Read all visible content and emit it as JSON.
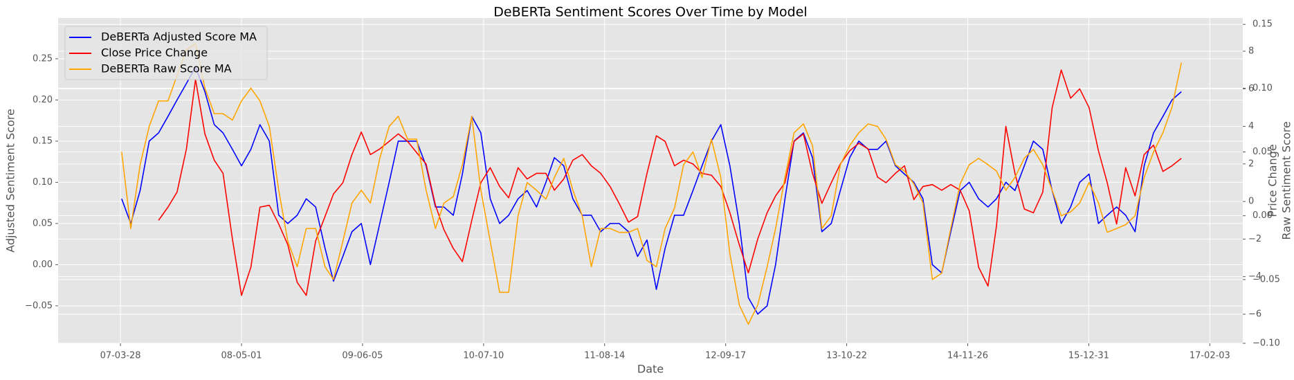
{
  "chart_data": {
    "type": "line",
    "title": "DeBERTa Sentiment Scores Over Time by Model",
    "xlabel": "Date",
    "ylabel": "Adjusted Sentiment Score",
    "y2label": "Price Change",
    "y3label": "Raw Sentiment Score",
    "grid": true,
    "legend": "upper left",
    "xlim": [
      "06-09-03",
      "17-05-23"
    ],
    "xticks": [
      "07-03-28",
      "08-05-01",
      "09-06-05",
      "10-07-10",
      "11-08-14",
      "12-09-17",
      "13-10-22",
      "14-11-26",
      "15-12-31",
      "17-02-03"
    ],
    "ylim": [
      -0.0955,
      0.2995
    ],
    "yticks": [
      {
        "value": -0.05,
        "label": "−0.05"
      },
      {
        "value": 0,
        "label": "0.00"
      },
      0.05,
      {
        "value": 0.1,
        "label": "0.10"
      },
      0.15,
      {
        "value": 0.2,
        "label": "0.20"
      },
      0.25
    ],
    "y2lim": [
      -7.55,
      9.77
    ],
    "y2ticks": [
      {
        "value": -6,
        "label": "−6"
      },
      {
        "value": -4,
        "label": "−4"
      },
      {
        "value": -2,
        "label": "−2"
      },
      0,
      2,
      4,
      6,
      8
    ],
    "y3lim": [
      -0.1,
      0.155
    ],
    "y3ticks": [
      {
        "value": -0.1,
        "label": "−0.10"
      },
      {
        "value": -0.05,
        "label": "−0.05"
      },
      {
        "value": 0,
        "label": "0.00"
      },
      0.05,
      {
        "value": 0.1,
        "label": "0.10"
      },
      0.15
    ],
    "x": [
      "07-04-01",
      "07-05-01",
      "07-06-01",
      "07-07-01",
      "07-08-01",
      "07-09-01",
      "07-10-01",
      "07-11-01",
      "07-12-01",
      "08-01-01",
      "08-02-01",
      "08-03-01",
      "08-04-01",
      "08-05-01",
      "08-06-01",
      "08-07-01",
      "08-08-01",
      "08-09-01",
      "08-10-01",
      "08-11-01",
      "08-12-01",
      "09-01-01",
      "09-02-01",
      "09-03-01",
      "09-04-01",
      "09-05-01",
      "09-06-01",
      "09-07-01",
      "09-08-01",
      "09-09-01",
      "09-10-01",
      "09-11-01",
      "09-12-01",
      "10-01-01",
      "10-02-01",
      "10-03-01",
      "10-04-01",
      "10-05-01",
      "10-06-01",
      "10-07-01",
      "10-08-01",
      "10-09-01",
      "10-10-01",
      "10-11-01",
      "10-12-01",
      "11-01-01",
      "11-02-01",
      "11-03-01",
      "11-04-01",
      "11-05-01",
      "11-06-01",
      "11-07-01",
      "11-08-01",
      "11-09-01",
      "11-10-01",
      "11-11-01",
      "11-12-01",
      "12-01-01",
      "12-02-01",
      "12-03-01",
      "12-04-01",
      "12-05-01",
      "12-06-01",
      "12-07-01",
      "12-08-01",
      "12-09-01",
      "12-10-01",
      "12-11-01",
      "12-12-01",
      "13-01-01",
      "13-02-01",
      "13-03-01",
      "13-04-01",
      "13-05-01",
      "13-06-01",
      "13-07-01",
      "13-08-01",
      "13-09-01",
      "13-10-01",
      "13-11-01",
      "13-12-01",
      "14-01-01",
      "14-02-01",
      "14-03-01",
      "14-04-01",
      "14-05-01",
      "14-06-01",
      "14-07-01",
      "14-08-01",
      "14-09-01",
      "14-10-01",
      "14-11-01",
      "14-12-01",
      "15-01-01",
      "15-02-01",
      "15-03-01",
      "15-04-01",
      "15-05-01",
      "15-06-01",
      "15-07-01",
      "15-08-01",
      "15-09-01",
      "15-10-01",
      "15-11-01",
      "15-12-01",
      "16-01-01",
      "16-02-01",
      "16-03-01",
      "16-04-01",
      "16-05-01",
      "16-06-01",
      "16-07-01",
      "16-08-01",
      "16-09-01",
      "16-10-01",
      "16-11-01"
    ],
    "series": [
      {
        "name": "DeBERTa Adjusted Score MA",
        "color": "#0000ff",
        "axis": "y",
        "values": [
          0.08,
          0.05,
          0.09,
          0.15,
          0.16,
          0.18,
          0.2,
          0.22,
          0.24,
          0.21,
          0.17,
          0.16,
          0.14,
          0.12,
          0.14,
          0.17,
          0.15,
          0.06,
          0.05,
          0.06,
          0.08,
          0.07,
          0.02,
          -0.02,
          0.01,
          0.04,
          0.05,
          0.0,
          0.05,
          0.1,
          0.15,
          0.15,
          0.15,
          0.12,
          0.07,
          0.07,
          0.06,
          0.11,
          0.18,
          0.16,
          0.08,
          0.05,
          0.06,
          0.08,
          0.09,
          0.07,
          0.1,
          0.13,
          0.12,
          0.08,
          0.06,
          0.06,
          0.04,
          0.05,
          0.05,
          0.04,
          0.01,
          0.03,
          -0.03,
          0.02,
          0.06,
          0.06,
          0.09,
          0.12,
          0.15,
          0.17,
          0.12,
          0.05,
          -0.04,
          -0.06,
          -0.05,
          0.0,
          0.08,
          0.15,
          0.16,
          0.13,
          0.04,
          0.05,
          0.09,
          0.13,
          0.15,
          0.14,
          0.14,
          0.15,
          0.12,
          0.11,
          0.1,
          0.08,
          0.0,
          -0.01,
          0.04,
          0.09,
          0.1,
          0.08,
          0.07,
          0.08,
          0.1,
          0.09,
          0.12,
          0.15,
          0.14,
          0.09,
          0.05,
          0.07,
          0.1,
          0.11,
          0.05,
          0.06,
          0.07,
          0.06,
          0.04,
          0.12,
          0.16,
          0.18,
          0.2,
          0.21
        ]
      },
      {
        "name": "Close Price Change",
        "color": "#ff0000",
        "axis": "y2",
        "values": [
          null,
          null,
          null,
          null,
          -1.0,
          -0.3,
          0.5,
          2.8,
          6.5,
          3.6,
          2.2,
          1.5,
          -2.0,
          -5.0,
          -3.5,
          -0.3,
          -0.2,
          -1.2,
          -2.3,
          -4.3,
          -5.0,
          -2.1,
          -0.8,
          0.4,
          1.0,
          2.5,
          3.7,
          2.5,
          2.8,
          3.2,
          3.6,
          3.2,
          2.6,
          2.0,
          -0.2,
          -1.5,
          -2.5,
          -3.2,
          -1.0,
          1.0,
          1.8,
          0.8,
          0.2,
          1.8,
          1.2,
          1.5,
          1.5,
          0.6,
          1.2,
          2.2,
          2.5,
          1.9,
          1.5,
          0.8,
          -0.1,
          -1.1,
          -0.8,
          1.5,
          3.5,
          3.2,
          1.9,
          2.2,
          2.0,
          1.5,
          1.4,
          0.8,
          -0.6,
          -2.3,
          -3.8,
          -2.0,
          -0.6,
          0.3,
          1.0,
          3.2,
          3.6,
          1.5,
          -0.1,
          1.0,
          2.0,
          2.7,
          3.1,
          2.8,
          1.3,
          1.0,
          1.5,
          1.9,
          0.1,
          0.8,
          0.9,
          0.6,
          0.9,
          0.6,
          -0.5,
          -3.5,
          -4.5,
          -1.3,
          4.0,
          1.5,
          -0.4,
          -0.6,
          0.5,
          5.0,
          7.0,
          5.5,
          6.0,
          5.0,
          2.7,
          1.0,
          -1.2,
          1.8,
          0.3,
          2.5,
          3.0,
          1.6,
          1.9,
          2.3
        ]
      },
      {
        "name": "DeBERTa Raw Score MA",
        "color": "#ffa500",
        "axis": "y3",
        "values": [
          0.05,
          -0.01,
          0.04,
          0.07,
          0.09,
          0.09,
          0.11,
          0.13,
          0.135,
          0.1,
          0.08,
          0.08,
          0.075,
          0.09,
          0.1,
          0.09,
          0.07,
          0.02,
          -0.02,
          -0.04,
          -0.01,
          -0.01,
          -0.04,
          -0.05,
          -0.02,
          0.01,
          0.02,
          0.01,
          0.045,
          0.07,
          0.078,
          0.06,
          0.06,
          0.02,
          -0.01,
          0.01,
          0.015,
          0.04,
          0.078,
          0.02,
          -0.02,
          -0.06,
          -0.06,
          0.0,
          0.026,
          0.02,
          0.013,
          0.03,
          0.045,
          0.02,
          0.0,
          -0.04,
          -0.01,
          -0.01,
          -0.013,
          -0.013,
          -0.01,
          -0.035,
          -0.04,
          -0.01,
          0.006,
          0.04,
          0.05,
          0.03,
          0.06,
          0.03,
          -0.03,
          -0.07,
          -0.085,
          -0.07,
          -0.04,
          -0.01,
          0.03,
          0.065,
          0.072,
          0.055,
          -0.01,
          0.0,
          0.04,
          0.055,
          0.065,
          0.072,
          0.07,
          0.06,
          0.04,
          0.035,
          0.025,
          0.01,
          -0.05,
          -0.045,
          -0.01,
          0.025,
          0.04,
          0.045,
          0.04,
          0.035,
          0.02,
          0.03,
          0.045,
          0.052,
          0.04,
          0.02,
          0.0,
          0.003,
          0.01,
          0.026,
          0.01,
          -0.013,
          -0.01,
          -0.007,
          0.0,
          0.03,
          0.05,
          0.065,
          0.085,
          0.12
        ]
      }
    ]
  }
}
